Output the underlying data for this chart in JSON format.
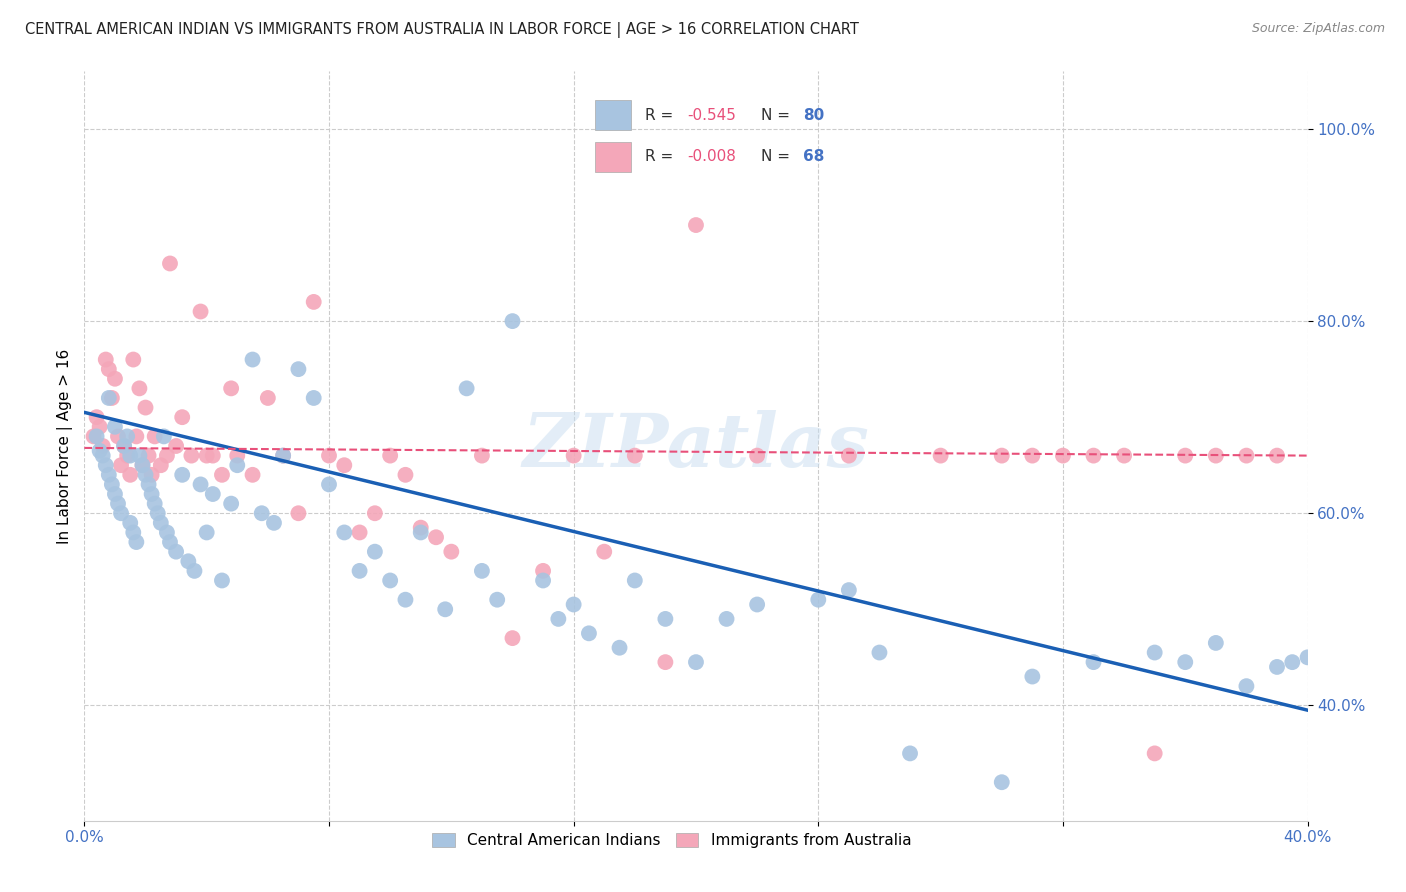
{
  "title": "CENTRAL AMERICAN INDIAN VS IMMIGRANTS FROM AUSTRALIA IN LABOR FORCE | AGE > 16 CORRELATION CHART",
  "source": "Source: ZipAtlas.com",
  "ylabel": "In Labor Force | Age > 16",
  "xlim": [
    0.0,
    0.4
  ],
  "ylim": [
    0.28,
    1.06
  ],
  "yticks": [
    0.4,
    0.6,
    0.8,
    1.0
  ],
  "xticks": [
    0.0,
    0.08,
    0.16,
    0.24,
    0.32,
    0.4
  ],
  "ytick_labels": [
    "40.0%",
    "60.0%",
    "80.0%",
    "100.0%"
  ],
  "xtick_labels": [
    "0.0%",
    "",
    "",
    "",
    "",
    "40.0%"
  ],
  "legend_R1": "-0.545",
  "legend_N1": "80",
  "legend_R2": "-0.008",
  "legend_N2": "68",
  "blue_color": "#a8c4e0",
  "pink_color": "#f4a7b9",
  "line_blue": "#1a5fb4",
  "line_pink": "#e8507a",
  "watermark": "ZIPatlas",
  "blue_line_x": [
    0.0,
    0.4
  ],
  "blue_line_y": [
    0.705,
    0.395
  ],
  "pink_line_x": [
    0.0,
    0.4
  ],
  "pink_line_y": [
    0.668,
    0.66
  ]
}
